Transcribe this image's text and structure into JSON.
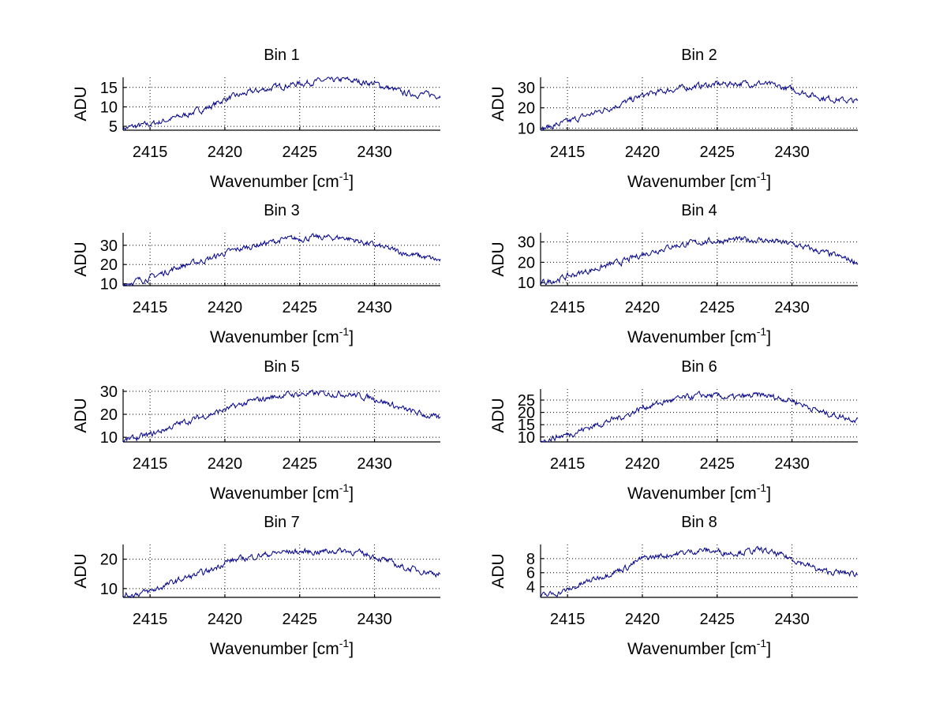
{
  "chart_data": {
    "type": "line",
    "xlabel": "Wavenumber [cm",
    "xlabel_sup": "-1",
    "xlabel_end": "]",
    "ylabel": "ADU",
    "xlim": [
      2413.2,
      2434.4
    ],
    "xticks": [
      2415,
      2420,
      2425,
      2430
    ],
    "grid": true,
    "line_color": "#00008B",
    "x_knots": [
      2413.2,
      2415,
      2417,
      2419,
      2420,
      2422,
      2424,
      2426,
      2428,
      2430,
      2432,
      2434.4
    ],
    "panels": [
      {
        "title": "Bin 1",
        "ylim": [
          4,
          17.6
        ],
        "yticks": [
          5,
          10,
          15
        ],
        "values": [
          4.5,
          5.5,
          7.5,
          10,
          12,
          14,
          15.5,
          16.5,
          17,
          16,
          13.5,
          13
        ]
      },
      {
        "title": "Bin 2",
        "ylim": [
          9,
          35
        ],
        "yticks": [
          10,
          20,
          30
        ],
        "values": [
          9.5,
          13,
          18,
          23,
          26,
          29,
          31,
          32,
          32,
          29,
          25,
          23
        ]
      },
      {
        "title": "Bin 3",
        "ylim": [
          9,
          36.5
        ],
        "yticks": [
          10,
          20,
          30
        ],
        "values": [
          10,
          13,
          19,
          23,
          26,
          30,
          33,
          34,
          34,
          30,
          26,
          22
        ]
      },
      {
        "title": "Bin 4",
        "ylim": [
          8.5,
          34.5
        ],
        "yticks": [
          10,
          20,
          30
        ],
        "values": [
          9.5,
          13,
          17,
          21,
          24,
          28,
          30,
          31,
          31,
          29,
          25,
          20
        ]
      },
      {
        "title": "Bin 5",
        "ylim": [
          8,
          31
        ],
        "yticks": [
          10,
          20,
          30
        ],
        "values": [
          8.5,
          11,
          16,
          20,
          22,
          26,
          28.5,
          29,
          29,
          27,
          22,
          18
        ]
      },
      {
        "title": "Bin 6",
        "ylim": [
          8,
          29.5
        ],
        "yticks": [
          10,
          15,
          20,
          25
        ],
        "values": [
          8.5,
          11,
          15,
          19,
          22,
          25,
          27,
          26,
          27,
          25,
          20,
          17
        ]
      },
      {
        "title": "Bin 7",
        "ylim": [
          7,
          25
        ],
        "yticks": [
          10,
          20
        ],
        "values": [
          7.5,
          9,
          13,
          16,
          19,
          21,
          22.5,
          22.5,
          23,
          21,
          17,
          15
        ]
      },
      {
        "title": "Bin 8",
        "ylim": [
          2.5,
          10
        ],
        "yticks": [
          4,
          6,
          8
        ],
        "values": [
          2.6,
          3.5,
          5.3,
          6.8,
          8,
          8.6,
          9.2,
          8.8,
          9.2,
          8,
          6.2,
          5.8
        ]
      }
    ]
  }
}
